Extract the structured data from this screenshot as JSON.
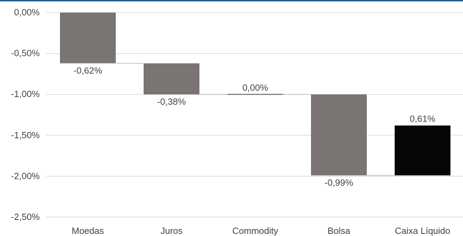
{
  "colors": {
    "top_border": "#1f5c8a",
    "gridline": "#d9d9d9",
    "bar_gray": "#7a7572",
    "bar_total": "#060606",
    "connector": "#bfbfbf",
    "text": "#404040"
  },
  "chart_data": {
    "type": "bar",
    "subtype": "waterfall",
    "title": "",
    "xlabel": "",
    "ylabel": "",
    "ylim": [
      -2.5,
      0.0
    ],
    "y_ticks": [
      0.0,
      -0.5,
      -1.0,
      -1.5,
      -2.0,
      -2.5
    ],
    "y_tick_labels": [
      "0,00%",
      "-0,50%",
      "-1,00%",
      "-1,50%",
      "-2,00%",
      "-2,50%"
    ],
    "grid": true,
    "legend": "none",
    "categories": [
      "Moedas",
      "Juros",
      "Commodity",
      "Bolsa",
      "Caixa Líquido"
    ],
    "values": [
      -0.62,
      -0.38,
      0.0,
      -0.99,
      0.61
    ],
    "data_labels": [
      "-0,62%",
      "-0,38%",
      "0,00%",
      "-0,99%",
      "0,61%"
    ],
    "bar_colors": [
      "#7a7572",
      "#7a7572",
      "#7a7572",
      "#7a7572",
      "#060606"
    ]
  }
}
